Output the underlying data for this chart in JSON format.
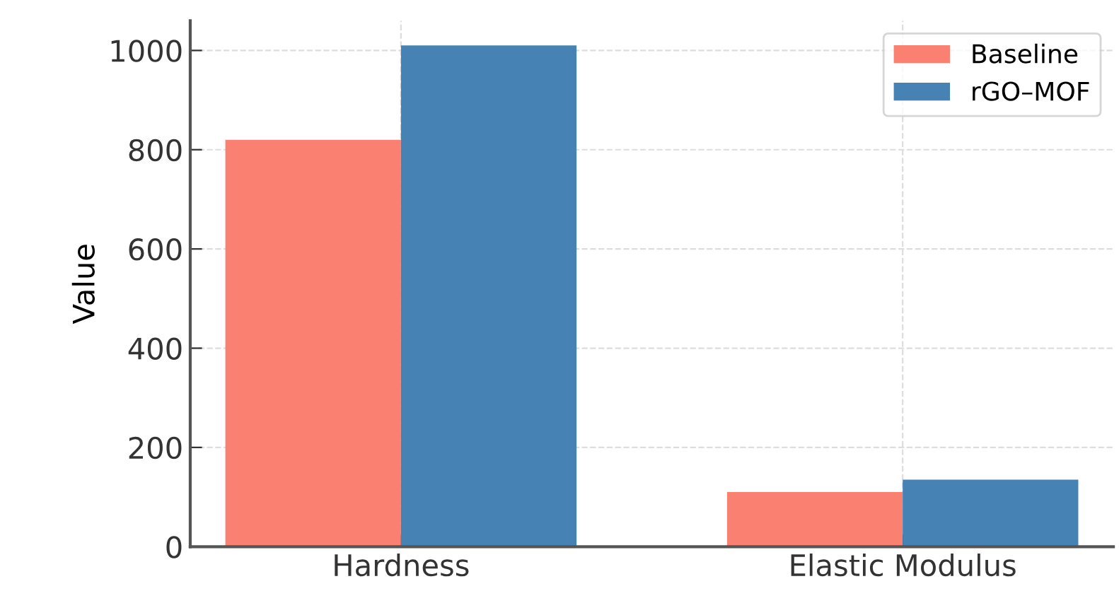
{
  "chart_data": {
    "type": "bar",
    "ylabel": "Value",
    "categories": [
      "Hardness",
      "Elastic Modulus"
    ],
    "series": [
      {
        "name": "Baseline",
        "color": "#fa8072",
        "values": [
          820,
          110
        ]
      },
      {
        "name": "rGO–MOF",
        "color": "#4682b4",
        "values": [
          1010,
          135
        ]
      }
    ],
    "ylim": [
      0,
      1060
    ],
    "yticks": [
      0,
      200,
      400,
      600,
      800,
      1000
    ],
    "grid": true,
    "legend": "top right"
  }
}
